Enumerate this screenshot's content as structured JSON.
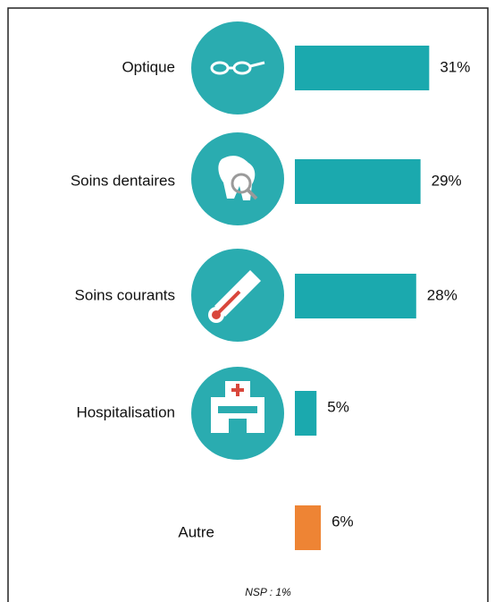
{
  "chart_data": {
    "type": "bar",
    "categories": [
      "Optique",
      "Soins dentaires",
      "Soins courants",
      "Hospitalisation",
      "Autre"
    ],
    "values": [
      31,
      29,
      28,
      5,
      6
    ],
    "value_labels": [
      "31%",
      "29%",
      "28%",
      "5%",
      "6%"
    ],
    "colors": [
      "#1ba9ae",
      "#1ba9ae",
      "#1ba9ae",
      "#1ba9ae",
      "#ee8434"
    ],
    "note": "NSP : 1%"
  }
}
